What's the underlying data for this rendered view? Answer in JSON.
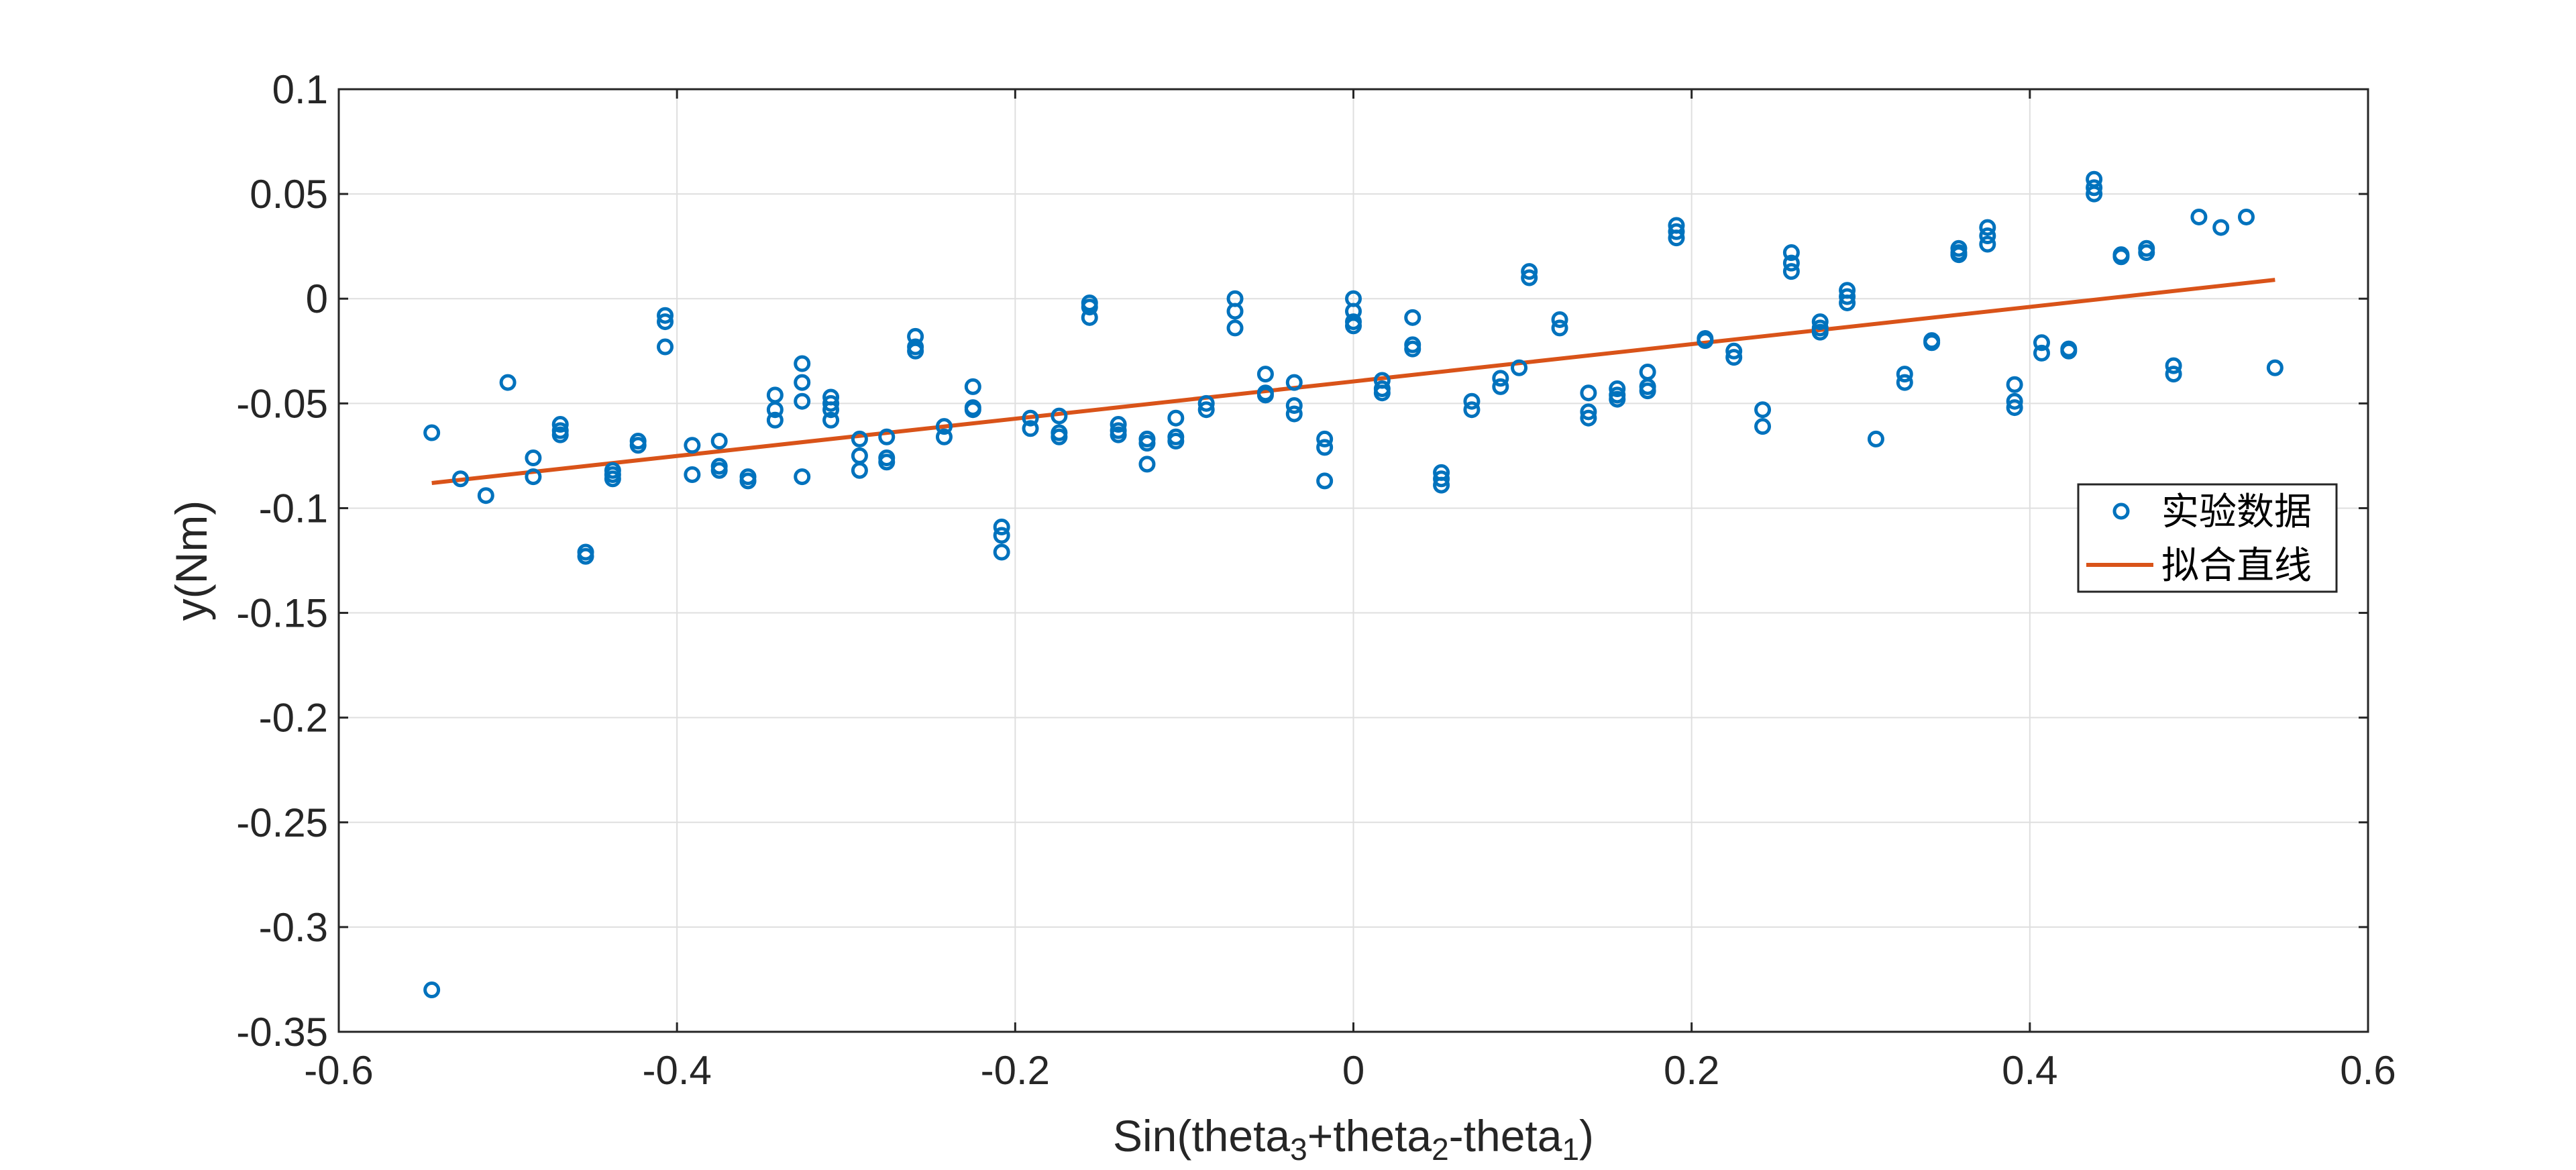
{
  "chart_data": {
    "type": "scatter",
    "xlabel": {
      "base": "Sin(theta",
      "sub1": "3",
      "mid1": "+theta",
      "sub2": "2",
      "mid2": "-theta",
      "sub3": "1",
      "end": ")"
    },
    "ylabel": "y(Nm)",
    "xlim": [
      -0.6,
      0.6
    ],
    "ylim": [
      -0.35,
      0.1
    ],
    "xticks": [
      -0.6,
      -0.4,
      -0.2,
      0,
      0.2,
      0.4,
      0.6
    ],
    "xtick_labels": [
      "-0.6",
      "-0.4",
      "-0.2",
      "0",
      "0.2",
      "0.4",
      "0.6"
    ],
    "yticks": [
      -0.35,
      -0.3,
      -0.25,
      -0.2,
      -0.15,
      -0.1,
      -0.05,
      0,
      0.05,
      0.1
    ],
    "ytick_labels": [
      "-0.35",
      "-0.3",
      "-0.25",
      "-0.2",
      "-0.15",
      "-0.1",
      "-0.05",
      "0",
      "0.05",
      "0.1"
    ],
    "grid": true,
    "legend_position": "right",
    "legend": [
      "实验数据",
      "拟合直线"
    ],
    "colors": {
      "points": "#0072BD",
      "line": "#D95319",
      "axis": "#262626",
      "grid": "#DFDFDF"
    },
    "series": [
      {
        "name": "实验数据",
        "type": "scatter",
        "points": [
          [
            -0.545,
            -0.064
          ],
          [
            -0.545,
            -0.33
          ],
          [
            -0.528,
            -0.086
          ],
          [
            -0.513,
            -0.094
          ],
          [
            -0.5,
            -0.04
          ],
          [
            -0.485,
            -0.076
          ],
          [
            -0.485,
            -0.085
          ],
          [
            -0.469,
            -0.06
          ],
          [
            -0.469,
            -0.063
          ],
          [
            -0.469,
            -0.065
          ],
          [
            -0.454,
            -0.121
          ],
          [
            -0.454,
            -0.123
          ],
          [
            -0.438,
            -0.082
          ],
          [
            -0.438,
            -0.084
          ],
          [
            -0.438,
            -0.086
          ],
          [
            -0.423,
            -0.068
          ],
          [
            -0.423,
            -0.07
          ],
          [
            -0.407,
            -0.008
          ],
          [
            -0.407,
            -0.011
          ],
          [
            -0.407,
            -0.023
          ],
          [
            -0.391,
            -0.07
          ],
          [
            -0.391,
            -0.084
          ],
          [
            -0.375,
            -0.068
          ],
          [
            -0.375,
            -0.08
          ],
          [
            -0.375,
            -0.082
          ],
          [
            -0.358,
            -0.085
          ],
          [
            -0.358,
            -0.087
          ],
          [
            -0.342,
            -0.046
          ],
          [
            -0.342,
            -0.053
          ],
          [
            -0.342,
            -0.058
          ],
          [
            -0.326,
            -0.031
          ],
          [
            -0.326,
            -0.04
          ],
          [
            -0.326,
            -0.049
          ],
          [
            -0.326,
            -0.085
          ],
          [
            -0.309,
            -0.047
          ],
          [
            -0.309,
            -0.05
          ],
          [
            -0.309,
            -0.053
          ],
          [
            -0.309,
            -0.058
          ],
          [
            -0.292,
            -0.067
          ],
          [
            -0.292,
            -0.075
          ],
          [
            -0.292,
            -0.082
          ],
          [
            -0.276,
            -0.066
          ],
          [
            -0.276,
            -0.076
          ],
          [
            -0.276,
            -0.078
          ],
          [
            -0.259,
            -0.018
          ],
          [
            -0.259,
            -0.023
          ],
          [
            -0.259,
            -0.025
          ],
          [
            -0.242,
            -0.061
          ],
          [
            -0.242,
            -0.066
          ],
          [
            -0.225,
            -0.042
          ],
          [
            -0.225,
            -0.052
          ],
          [
            -0.225,
            -0.053
          ],
          [
            -0.208,
            -0.109
          ],
          [
            -0.208,
            -0.113
          ],
          [
            -0.208,
            -0.121
          ],
          [
            -0.191,
            -0.057
          ],
          [
            -0.191,
            -0.062
          ],
          [
            -0.174,
            -0.056
          ],
          [
            -0.174,
            -0.064
          ],
          [
            -0.174,
            -0.066
          ],
          [
            -0.156,
            -0.002
          ],
          [
            -0.156,
            -0.004
          ],
          [
            -0.156,
            -0.009
          ],
          [
            -0.139,
            -0.06
          ],
          [
            -0.139,
            -0.063
          ],
          [
            -0.139,
            -0.065
          ],
          [
            -0.122,
            -0.067
          ],
          [
            -0.122,
            -0.069
          ],
          [
            -0.122,
            -0.079
          ],
          [
            -0.105,
            -0.057
          ],
          [
            -0.105,
            -0.066
          ],
          [
            -0.105,
            -0.068
          ],
          [
            -0.087,
            -0.05
          ],
          [
            -0.087,
            -0.053
          ],
          [
            -0.07,
            0.0
          ],
          [
            -0.07,
            -0.006
          ],
          [
            -0.07,
            -0.014
          ],
          [
            -0.052,
            -0.036
          ],
          [
            -0.052,
            -0.045
          ],
          [
            -0.052,
            -0.046
          ],
          [
            -0.035,
            -0.04
          ],
          [
            -0.035,
            -0.051
          ],
          [
            -0.035,
            -0.055
          ],
          [
            -0.017,
            -0.067
          ],
          [
            -0.017,
            -0.071
          ],
          [
            -0.017,
            -0.087
          ],
          [
            0.0,
            0.0
          ],
          [
            0.0,
            -0.006
          ],
          [
            0.0,
            -0.011
          ],
          [
            0.0,
            -0.013
          ],
          [
            0.017,
            -0.039
          ],
          [
            0.017,
            -0.043
          ],
          [
            0.017,
            -0.045
          ],
          [
            0.035,
            -0.009
          ],
          [
            0.035,
            -0.022
          ],
          [
            0.035,
            -0.024
          ],
          [
            0.052,
            -0.083
          ],
          [
            0.052,
            -0.086
          ],
          [
            0.052,
            -0.089
          ],
          [
            0.07,
            -0.049
          ],
          [
            0.07,
            -0.053
          ],
          [
            0.087,
            -0.038
          ],
          [
            0.087,
            -0.042
          ],
          [
            0.098,
            -0.033
          ],
          [
            0.104,
            0.013
          ],
          [
            0.104,
            0.01
          ],
          [
            0.122,
            -0.01
          ],
          [
            0.122,
            -0.014
          ],
          [
            0.139,
            -0.045
          ],
          [
            0.139,
            -0.054
          ],
          [
            0.139,
            -0.057
          ],
          [
            0.156,
            -0.043
          ],
          [
            0.156,
            -0.046
          ],
          [
            0.156,
            -0.048
          ],
          [
            0.174,
            -0.035
          ],
          [
            0.174,
            -0.042
          ],
          [
            0.174,
            -0.044
          ],
          [
            0.191,
            0.035
          ],
          [
            0.191,
            0.032
          ],
          [
            0.191,
            0.029
          ],
          [
            0.208,
            -0.019
          ],
          [
            0.208,
            -0.02
          ],
          [
            0.225,
            -0.025
          ],
          [
            0.225,
            -0.028
          ],
          [
            0.242,
            -0.053
          ],
          [
            0.242,
            -0.061
          ],
          [
            0.259,
            0.022
          ],
          [
            0.259,
            0.017
          ],
          [
            0.259,
            0.013
          ],
          [
            0.276,
            -0.011
          ],
          [
            0.276,
            -0.014
          ],
          [
            0.276,
            -0.016
          ],
          [
            0.292,
            0.004
          ],
          [
            0.292,
            0.001
          ],
          [
            0.292,
            -0.002
          ],
          [
            0.309,
            -0.067
          ],
          [
            0.326,
            -0.036
          ],
          [
            0.326,
            -0.04
          ],
          [
            0.342,
            -0.02
          ],
          [
            0.342,
            -0.021
          ],
          [
            0.358,
            0.024
          ],
          [
            0.358,
            0.022
          ],
          [
            0.358,
            0.021
          ],
          [
            0.375,
            0.034
          ],
          [
            0.375,
            0.03
          ],
          [
            0.375,
            0.026
          ],
          [
            0.391,
            -0.041
          ],
          [
            0.391,
            -0.049
          ],
          [
            0.391,
            -0.052
          ],
          [
            0.407,
            -0.021
          ],
          [
            0.407,
            -0.026
          ],
          [
            0.423,
            -0.024
          ],
          [
            0.423,
            -0.025
          ],
          [
            0.438,
            0.057
          ],
          [
            0.438,
            0.053
          ],
          [
            0.438,
            0.05
          ],
          [
            0.454,
            0.021
          ],
          [
            0.454,
            0.02
          ],
          [
            0.469,
            0.024
          ],
          [
            0.469,
            0.022
          ],
          [
            0.485,
            -0.032
          ],
          [
            0.485,
            -0.036
          ],
          [
            0.5,
            0.039
          ],
          [
            0.513,
            0.034
          ],
          [
            0.528,
            0.039
          ],
          [
            0.545,
            -0.033
          ]
        ]
      },
      {
        "name": "拟合直线",
        "type": "line",
        "x": [
          -0.545,
          0.545
        ],
        "y": [
          -0.088,
          0.009
        ]
      }
    ]
  }
}
